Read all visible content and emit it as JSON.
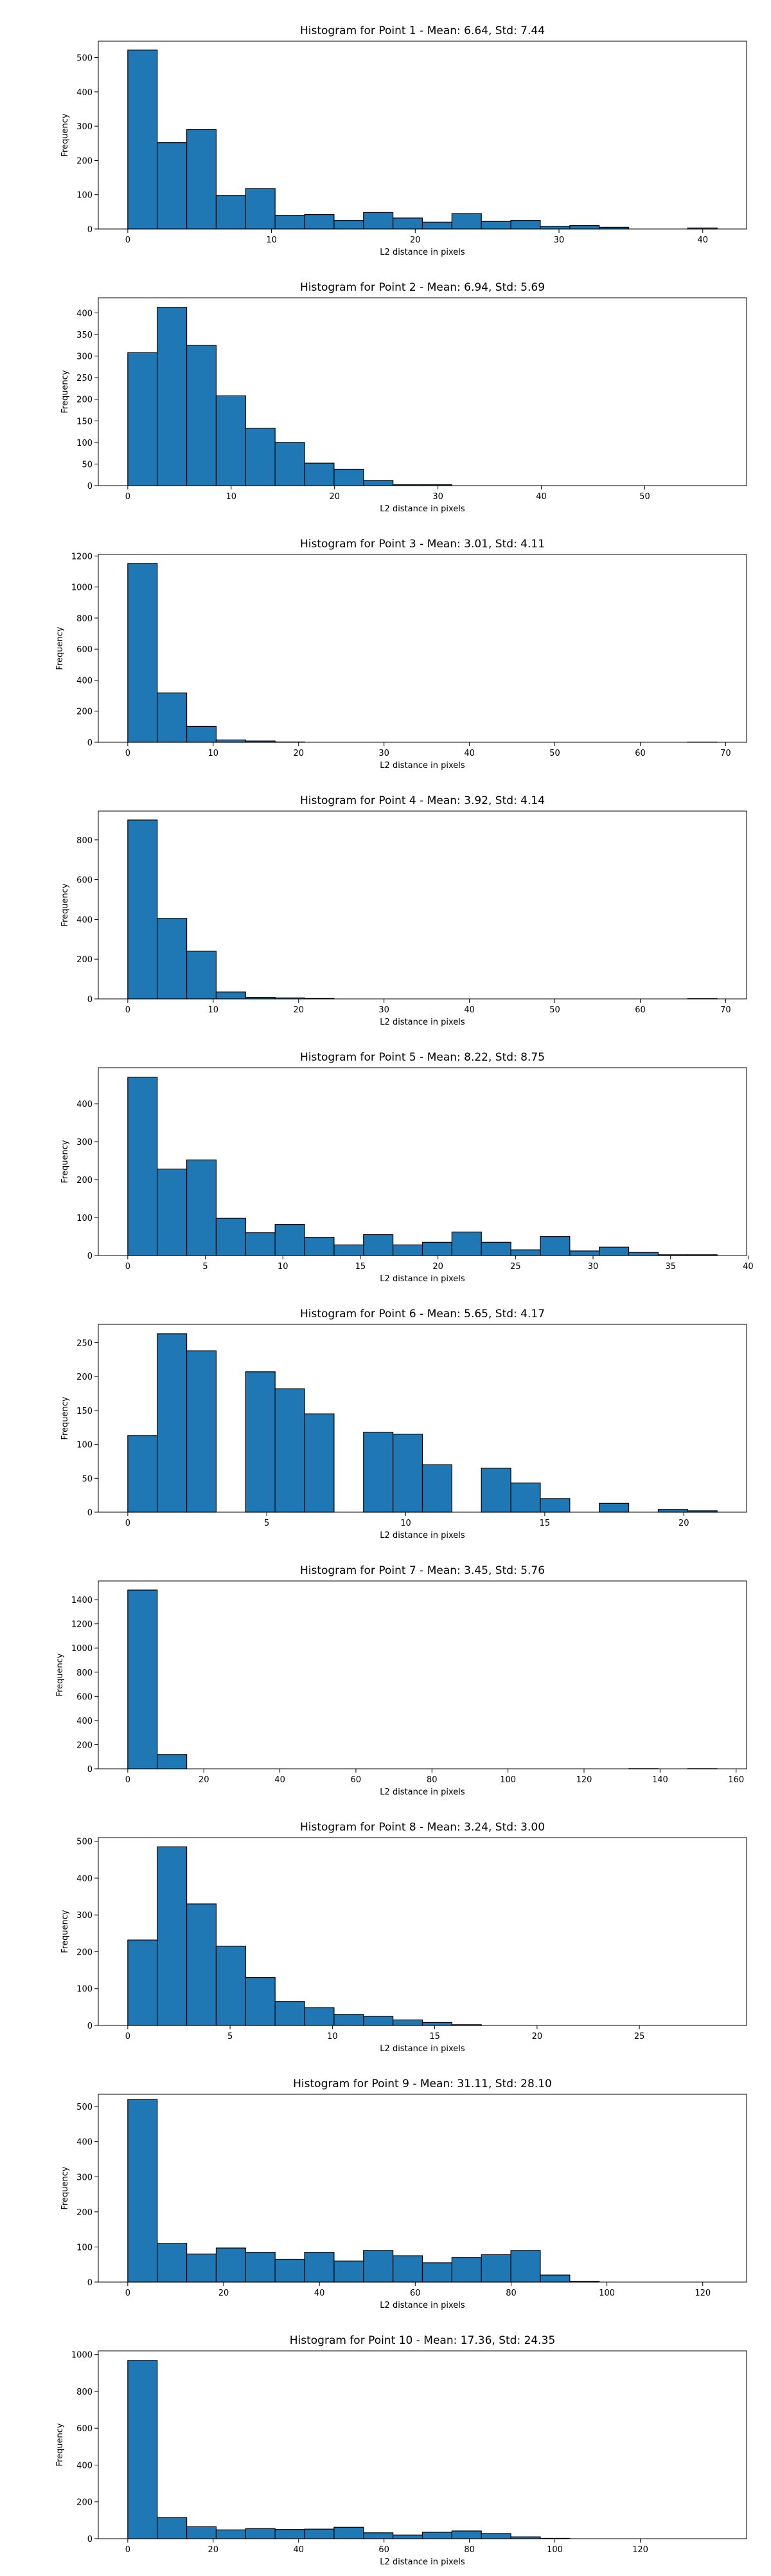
{
  "chart_data": [
    {
      "type": "bar",
      "title": "Histogram for Point 1 - Mean: 6.64, Std: 7.44",
      "xlabel": "L2 distance in pixels",
      "ylabel": "Frequency",
      "xlim": [
        -2.05,
        43.05
      ],
      "ylim": [
        0,
        548
      ],
      "xticks": [
        0,
        10,
        20,
        30,
        40
      ],
      "yticks": [
        0,
        100,
        200,
        300,
        400,
        500
      ],
      "bin_edges": [
        0,
        2.05,
        4.1,
        6.15,
        8.2,
        10.25,
        12.3,
        14.35,
        16.4,
        18.45,
        20.5,
        22.55,
        24.6,
        26.65,
        28.7,
        30.75,
        32.8,
        34.85,
        36.9,
        38.95,
        41.0
      ],
      "values": [
        522,
        252,
        290,
        98,
        118,
        40,
        42,
        25,
        48,
        32,
        20,
        45,
        22,
        25,
        8,
        10,
        5,
        0,
        0,
        3
      ],
      "color": "#1f77b4"
    },
    {
      "type": "bar",
      "title": "Histogram for Point 2 - Mean: 6.94, Std: 5.69",
      "xlabel": "L2 distance in pixels",
      "ylabel": "Frequency",
      "xlim": [
        -2.85,
        59.85
      ],
      "ylim": [
        0,
        435
      ],
      "xticks": [
        0,
        10,
        20,
        30,
        40,
        50
      ],
      "yticks": [
        0,
        50,
        100,
        150,
        200,
        250,
        300,
        350,
        400
      ],
      "bin_edges": [
        0,
        2.85,
        5.7,
        8.55,
        11.4,
        14.25,
        17.1,
        19.95,
        22.8,
        25.65,
        28.5,
        31.35,
        34.2,
        37.05,
        39.9,
        42.75,
        45.6,
        48.45,
        51.3,
        54.15,
        57.0
      ],
      "values": [
        308,
        413,
        325,
        208,
        133,
        100,
        52,
        38,
        12,
        2,
        2,
        0,
        0,
        0,
        0,
        0,
        0,
        0,
        0,
        0
      ],
      "color": "#1f77b4"
    },
    {
      "type": "bar",
      "title": "Histogram for Point 3 - Mean: 3.01, Std: 4.11",
      "xlabel": "L2 distance in pixels",
      "ylabel": "Frequency",
      "xlim": [
        -3.45,
        72.45
      ],
      "ylim": [
        0,
        1210
      ],
      "xticks": [
        0,
        10,
        20,
        30,
        40,
        50,
        60,
        70
      ],
      "yticks": [
        0,
        200,
        400,
        600,
        800,
        1000,
        1200
      ],
      "bin_edges": [
        0,
        3.45,
        6.9,
        10.35,
        13.8,
        17.25,
        20.7,
        24.15,
        27.6,
        31.05,
        34.5,
        37.95,
        41.4,
        44.85,
        48.3,
        51.75,
        55.2,
        58.65,
        62.1,
        65.55,
        69.0
      ],
      "values": [
        1152,
        318,
        102,
        15,
        8,
        2,
        0,
        0,
        0,
        0,
        0,
        0,
        0,
        0,
        0,
        0,
        0,
        0,
        0,
        1
      ],
      "color": "#1f77b4"
    },
    {
      "type": "bar",
      "title": "Histogram for Point 4 - Mean: 3.92, Std: 4.14",
      "xlabel": "L2 distance in pixels",
      "ylabel": "Frequency",
      "xlim": [
        -3.45,
        72.45
      ],
      "ylim": [
        0,
        945
      ],
      "xticks": [
        0,
        10,
        20,
        30,
        40,
        50,
        60,
        70
      ],
      "yticks": [
        0,
        200,
        400,
        600,
        800
      ],
      "bin_edges": [
        0,
        3.45,
        6.9,
        10.35,
        13.8,
        17.25,
        20.7,
        24.15,
        27.6,
        31.05,
        34.5,
        37.95,
        41.4,
        44.85,
        48.3,
        51.75,
        55.2,
        58.65,
        62.1,
        65.55,
        69.0
      ],
      "values": [
        900,
        405,
        240,
        35,
        8,
        5,
        2,
        0,
        0,
        0,
        0,
        0,
        0,
        0,
        0,
        0,
        0,
        0,
        0,
        1
      ],
      "color": "#1f77b4"
    },
    {
      "type": "bar",
      "title": "Histogram for Point 5 - Mean: 8.22, Std: 8.75",
      "xlabel": "L2 distance in pixels",
      "ylabel": "Frequency",
      "xlim": [
        -1.9,
        39.9
      ],
      "ylim": [
        0,
        495
      ],
      "xticks": [
        0,
        5,
        10,
        15,
        20,
        25,
        30,
        35,
        40
      ],
      "yticks": [
        0,
        100,
        200,
        300,
        400
      ],
      "bin_edges": [
        0,
        1.9,
        3.8,
        5.7,
        7.6,
        9.5,
        11.4,
        13.3,
        15.2,
        17.1,
        19.0,
        20.9,
        22.8,
        24.7,
        26.6,
        28.5,
        30.4,
        32.3,
        34.2,
        36.1,
        38.0
      ],
      "values": [
        470,
        228,
        252,
        98,
        60,
        82,
        48,
        28,
        55,
        28,
        35,
        62,
        35,
        15,
        50,
        12,
        22,
        8,
        2,
        2
      ],
      "color": "#1f77b4"
    },
    {
      "type": "bar",
      "title": "Histogram for Point 6 - Mean: 5.65, Std: 4.17",
      "xlabel": "L2 distance in pixels",
      "ylabel": "Frequency",
      "xlim": [
        -1.06,
        22.26
      ],
      "ylim": [
        0,
        277
      ],
      "xticks": [
        0,
        5,
        10,
        15,
        20
      ],
      "yticks": [
        0,
        50,
        100,
        150,
        200,
        250
      ],
      "bin_edges": [
        0,
        1.06,
        2.12,
        3.18,
        4.24,
        5.3,
        6.36,
        7.42,
        8.48,
        9.54,
        10.6,
        11.66,
        12.72,
        13.78,
        14.84,
        15.9,
        16.96,
        18.02,
        19.08,
        20.14,
        21.2
      ],
      "values": [
        113,
        263,
        238,
        0,
        207,
        182,
        145,
        0,
        118,
        115,
        70,
        0,
        65,
        43,
        20,
        0,
        13,
        0,
        4,
        2
      ],
      "color": "#1f77b4"
    },
    {
      "type": "bar",
      "title": "Histogram for Point 7 - Mean: 3.45, Std: 5.76",
      "xlabel": "L2 distance in pixels",
      "ylabel": "Frequency",
      "xlim": [
        -7.75,
        162.75
      ],
      "ylim": [
        0,
        1555
      ],
      "xticks": [
        0,
        20,
        40,
        60,
        80,
        100,
        120,
        140,
        160
      ],
      "yticks": [
        0,
        200,
        400,
        600,
        800,
        1000,
        1200,
        1400
      ],
      "bin_edges": [
        0,
        7.75,
        15.5,
        23.25,
        31.0,
        38.75,
        46.5,
        54.25,
        62.0,
        69.75,
        77.5,
        85.25,
        93.0,
        100.75,
        108.5,
        116.25,
        124.0,
        131.75,
        139.5,
        147.25,
        155.0
      ],
      "values": [
        1480,
        118,
        0,
        0,
        0,
        0,
        0,
        0,
        0,
        0,
        0,
        0,
        0,
        0,
        0,
        0,
        0,
        1,
        0,
        1
      ],
      "color": "#1f77b4"
    },
    {
      "type": "bar",
      "title": "Histogram for Point 8 - Mean: 3.24, Std: 3.00",
      "xlabel": "L2 distance in pixels",
      "ylabel": "Frequency",
      "xlim": [
        -1.44,
        30.24
      ],
      "ylim": [
        0,
        510
      ],
      "xticks": [
        0,
        5,
        10,
        15,
        20,
        25
      ],
      "yticks": [
        0,
        100,
        200,
        300,
        400,
        500
      ],
      "bin_edges": [
        0,
        1.44,
        2.88,
        4.32,
        5.76,
        7.2,
        8.64,
        10.08,
        11.52,
        12.96,
        14.4,
        15.84,
        17.28,
        18.72,
        20.16,
        21.6,
        23.04,
        24.48,
        25.92,
        27.36,
        28.8
      ],
      "values": [
        232,
        485,
        330,
        215,
        130,
        65,
        48,
        30,
        25,
        15,
        8,
        2,
        0,
        0,
        0,
        0,
        0,
        0,
        0,
        0
      ],
      "color": "#1f77b4"
    },
    {
      "type": "bar",
      "title": "Histogram for Point 9 - Mean: 31.11, Std: 28.10",
      "xlabel": "L2 distance in pixels",
      "ylabel": "Frequency",
      "xlim": [
        -6.15,
        129.15
      ],
      "ylim": [
        0,
        535
      ],
      "xticks": [
        0,
        20,
        40,
        60,
        80,
        100,
        120
      ],
      "yticks": [
        0,
        100,
        200,
        300,
        400,
        500
      ],
      "bin_edges": [
        0,
        6.15,
        12.3,
        18.45,
        24.6,
        30.75,
        36.9,
        43.05,
        49.2,
        55.35,
        61.5,
        67.65,
        73.8,
        79.95,
        86.1,
        92.25,
        98.4,
        104.55,
        110.7,
        116.85,
        123.0
      ],
      "values": [
        520,
        110,
        80,
        97,
        85,
        65,
        85,
        60,
        90,
        75,
        55,
        70,
        78,
        90,
        20,
        2,
        0,
        0,
        0,
        0
      ],
      "color": "#1f77b4"
    },
    {
      "type": "bar",
      "title": "Histogram for Point 10 - Mean: 17.36, Std: 24.35",
      "xlabel": "L2 distance in pixels",
      "ylabel": "Frequency",
      "xlim": [
        -6.9,
        144.9
      ],
      "ylim": [
        0,
        1020
      ],
      "xticks": [
        0,
        20,
        40,
        60,
        80,
        100,
        120
      ],
      "yticks": [
        0,
        200,
        400,
        600,
        800,
        1000
      ],
      "bin_edges": [
        0,
        6.9,
        13.8,
        20.7,
        27.6,
        34.5,
        41.4,
        48.3,
        55.2,
        62.1,
        69.0,
        75.9,
        82.8,
        89.7,
        96.6,
        103.5,
        110.4,
        117.3,
        124.2,
        131.1,
        138.0
      ],
      "values": [
        968,
        115,
        65,
        48,
        55,
        50,
        52,
        62,
        32,
        20,
        35,
        42,
        28,
        10,
        2,
        0,
        0,
        0,
        0,
        0
      ],
      "color": "#1f77b4"
    }
  ]
}
